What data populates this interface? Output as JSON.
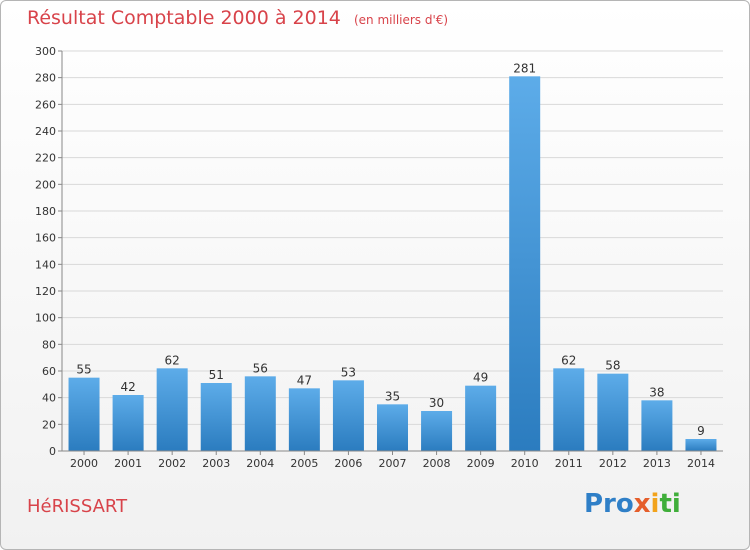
{
  "chart_data": {
    "type": "bar",
    "title": "Résultat Comptable 2000 à 2014",
    "subtitle": "(en milliers d'€)",
    "categories": [
      "2000",
      "2001",
      "2002",
      "2003",
      "2004",
      "2005",
      "2006",
      "2007",
      "2008",
      "2009",
      "2010",
      "2011",
      "2012",
      "2013",
      "2014"
    ],
    "values": [
      55,
      42,
      62,
      51,
      56,
      47,
      53,
      35,
      30,
      49,
      281,
      62,
      58,
      38,
      9
    ],
    "yticks": [
      0,
      20,
      40,
      60,
      80,
      100,
      120,
      140,
      160,
      180,
      200,
      220,
      240,
      260,
      280,
      300
    ],
    "ylim": [
      0,
      300
    ],
    "xlabel": "",
    "ylabel": "",
    "grid": true,
    "bar_color_top": "#5dace9",
    "bar_color_bottom": "#2b7cbf"
  },
  "commune_name": "HéRISSART",
  "logo": {
    "p1": "Pro",
    "p2": "x",
    "p3": "i",
    "p4": "ti"
  }
}
